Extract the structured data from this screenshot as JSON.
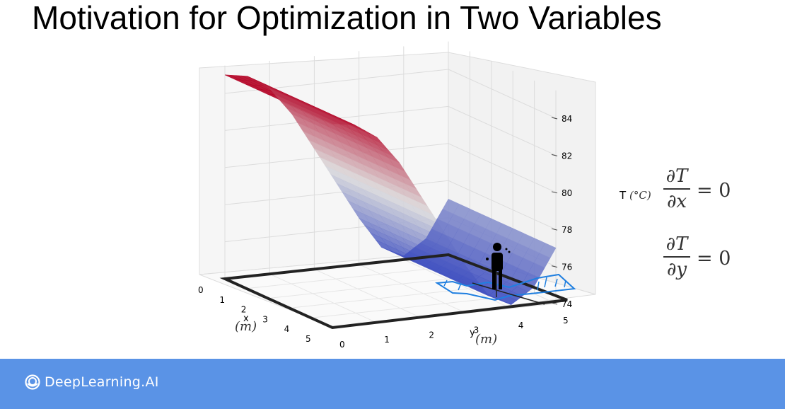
{
  "slide": {
    "title": "Motivation for Optimization in Two Variables"
  },
  "equations": {
    "eq1": {
      "numerator": "∂T",
      "denominator": "∂x",
      "rhs": "= 0"
    },
    "eq2": {
      "numerator": "∂T",
      "denominator": "∂y",
      "rhs": "= 0"
    }
  },
  "footer": {
    "brand": "DeepLearning.AI",
    "color": "#5a93e6"
  },
  "chart_data": {
    "type": "surface3d",
    "title": "",
    "x_axis": {
      "label": "x",
      "unit": "(m)",
      "ticks": [
        "0",
        "1",
        "2",
        "3",
        "4",
        "5"
      ],
      "range": [
        0,
        5
      ]
    },
    "y_axis": {
      "label": "y",
      "unit": "(m)",
      "ticks": [
        "0",
        "1",
        "2",
        "3",
        "4",
        "5"
      ],
      "range": [
        0,
        5
      ]
    },
    "z_axis": {
      "label": "T",
      "unit": "(°C)",
      "ticks": [
        "74",
        "76",
        "78",
        "80",
        "82",
        "84"
      ],
      "range": [
        73.5,
        85.5
      ]
    },
    "surface_colormap": "coolwarm",
    "z_values_along_y_at_x0": {
      "y": [
        0,
        0.5,
        1,
        1.5,
        2,
        2.5,
        3,
        3.5,
        4,
        4.5,
        5
      ],
      "T": [
        85,
        84.8,
        84,
        82.5,
        80.5,
        78.5,
        76.5,
        74.8,
        74.2,
        75,
        77
      ]
    },
    "minimum": {
      "x": 3.3,
      "y": 4,
      "T": 74.2
    },
    "grid": true,
    "annotations": [
      "person figure standing at the minimum"
    ]
  }
}
